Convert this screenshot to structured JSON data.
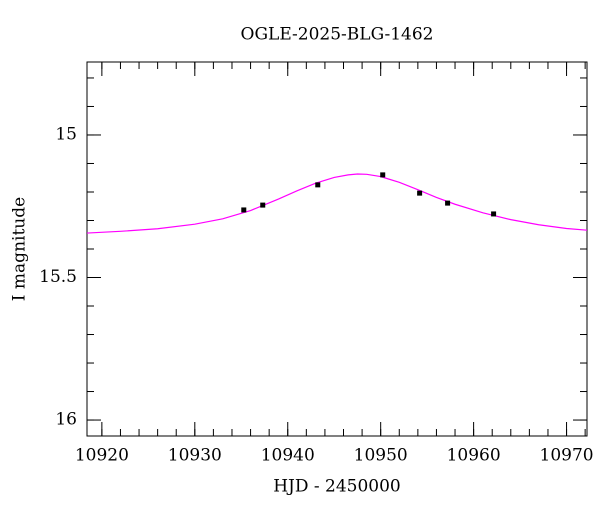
{
  "chart_data": {
    "type": "scatter",
    "title": "OGLE-2025-BLG-1462",
    "x_label": "HJD - 2450000",
    "y_label": "I magnitude",
    "xlim": [
      10918.4,
      10972.2
    ],
    "ylim": [
      16.056,
      14.744
    ],
    "xticks": [
      10920,
      10930,
      10940,
      10950,
      10960,
      10970
    ],
    "yticks": [
      15,
      {
        "value": 15.5,
        "label": "15.5"
      },
      16
    ],
    "xminorticks": [
      10920,
      10922,
      10924,
      10926,
      10928,
      10930,
      10932,
      10934,
      10936,
      10938,
      10940,
      10942,
      10944,
      10946,
      10948,
      10950,
      10952,
      10954,
      10956,
      10958,
      10960,
      10962,
      10964,
      10966,
      10968,
      10970,
      10972
    ],
    "yminorticks": [
      14.8,
      14.9,
      15.0,
      15.1,
      15.2,
      15.3,
      15.4,
      15.5,
      15.6,
      15.7,
      15.8,
      15.9,
      16.0
    ],
    "series": [
      {
        "kind": "points",
        "color": "#000000",
        "x": [
          10935.27,
          10937.31,
          10943.23,
          10950.22,
          10954.19,
          10957.2,
          10962.15
        ],
        "values": [
          15.263,
          15.246,
          15.175,
          15.14,
          15.204,
          15.239,
          15.277
        ]
      },
      {
        "kind": "line",
        "color": "#ff00ff",
        "x": [
          10918.4,
          10922,
          10926,
          10930,
          10933,
          10936,
          10939,
          10941,
          10943,
          10945,
          10946.5,
          10947.5,
          10948.5,
          10950,
          10952,
          10954,
          10956,
          10958,
          10961,
          10964,
          10967,
          10970,
          10972.2
        ],
        "values": [
          15.344,
          15.338,
          15.329,
          15.313,
          15.294,
          15.265,
          15.225,
          15.196,
          15.169,
          15.149,
          15.14,
          15.137,
          15.138,
          15.146,
          15.166,
          15.192,
          15.219,
          15.243,
          15.273,
          15.297,
          15.315,
          15.328,
          15.334
        ]
      }
    ]
  }
}
